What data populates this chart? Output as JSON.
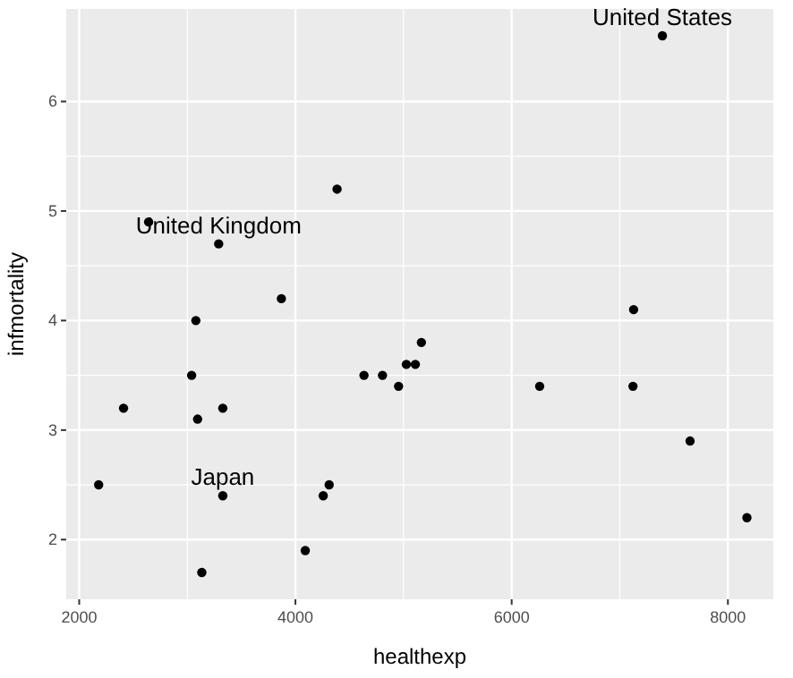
{
  "chart_data": {
    "type": "scatter",
    "xlabel": "healthexp",
    "ylabel": "infmortality",
    "x": [
      2180,
      2410,
      2642,
      3040,
      3079,
      3095,
      3134,
      3290,
      3328,
      3328,
      3870,
      4091,
      4257,
      4312,
      4385,
      4634,
      4805,
      4954,
      5026,
      5109,
      5165,
      6259,
      7122,
      7128,
      7394,
      7650,
      8176
    ],
    "values": [
      2.5,
      3.2,
      4.9,
      3.5,
      4.0,
      3.1,
      1.7,
      4.7,
      3.2,
      2.4,
      4.2,
      1.9,
      2.4,
      2.5,
      5.2,
      3.5,
      3.5,
      3.4,
      3.6,
      3.6,
      3.8,
      3.4,
      3.4,
      4.1,
      6.6,
      2.9,
      2.2
    ],
    "color": "#000000",
    "marker": "circle",
    "grid": true,
    "xlim": [
      1880,
      8420
    ],
    "xticks": [
      2000,
      4000,
      6000,
      8000
    ],
    "ylim": [
      1.455,
      6.845
    ],
    "yticks": [
      2,
      3,
      4,
      5,
      6
    ],
    "annotations": [
      {
        "text": "United States",
        "x": 7394,
        "y": 6.6
      },
      {
        "text": "United Kingdom",
        "x": 3290,
        "y": 4.7
      },
      {
        "text": "Japan",
        "x": 3328,
        "y": 2.4
      }
    ]
  }
}
